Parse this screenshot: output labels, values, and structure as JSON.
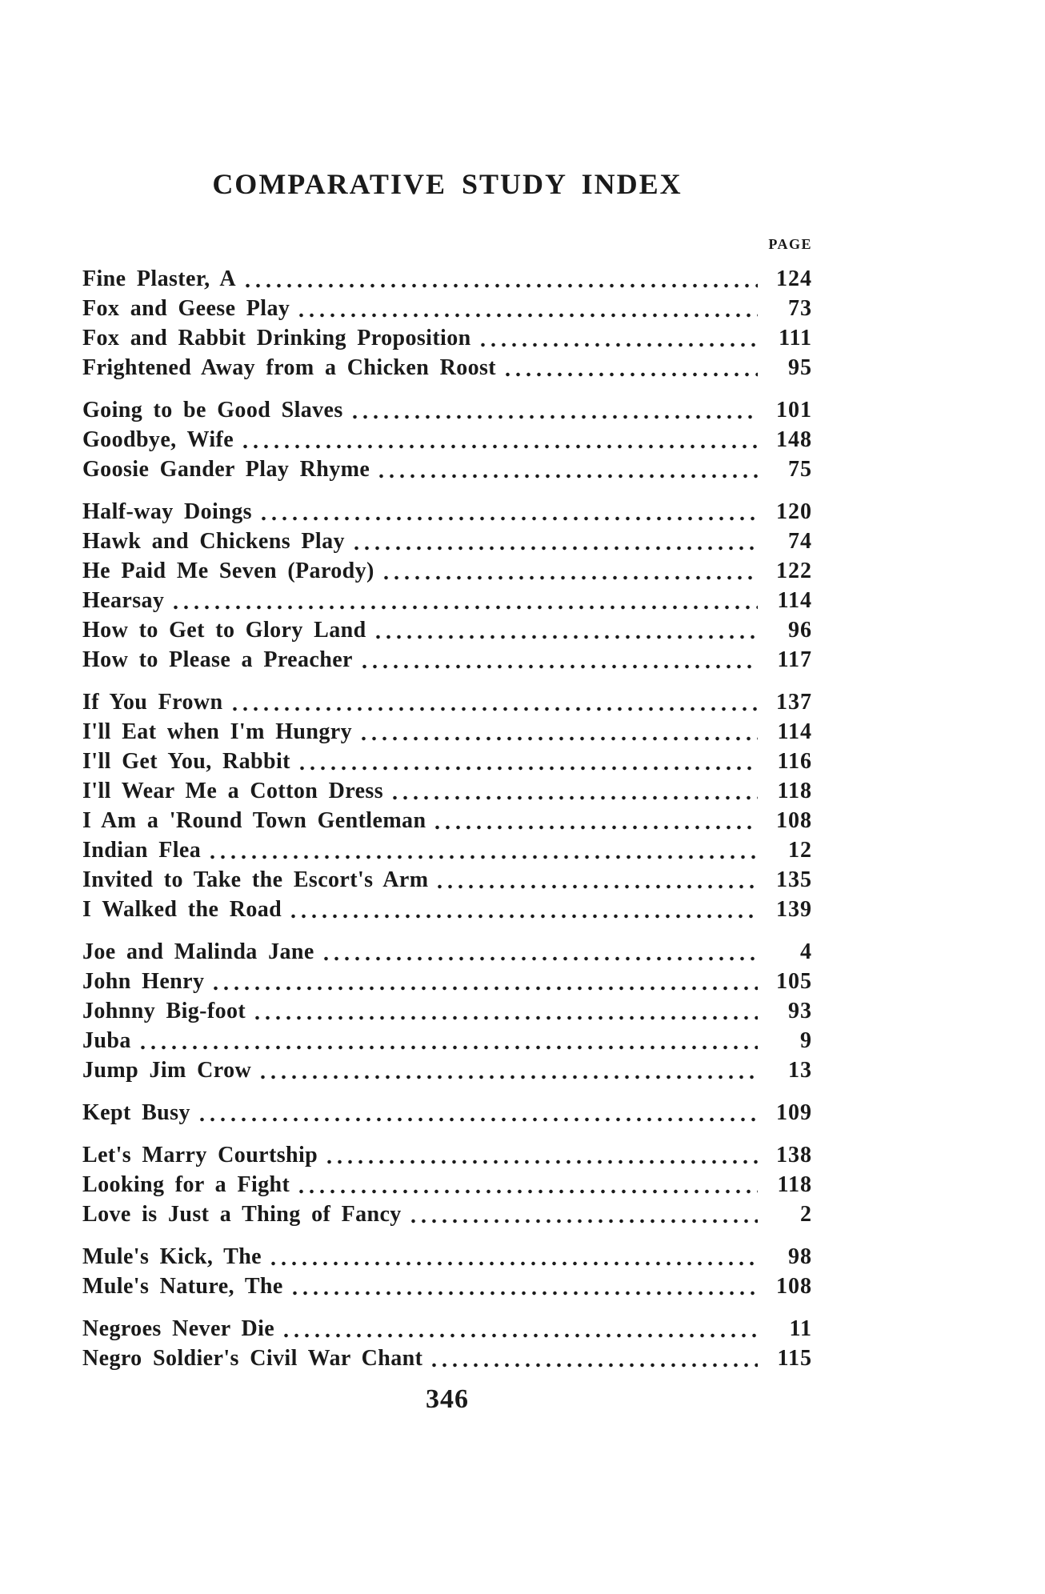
{
  "page": {
    "title": "COMPARATIVE STUDY INDEX",
    "page_column_label": "PAGE",
    "folio": "346"
  },
  "colors": {
    "paper": "#ffffff",
    "ink": "#1a1a1a"
  },
  "index_groups": [
    {
      "entries": [
        {
          "title": "Fine Plaster, A",
          "page": "124"
        },
        {
          "title": "Fox and Geese Play",
          "page": "73"
        },
        {
          "title": "Fox and Rabbit Drinking Proposition",
          "page": "111"
        },
        {
          "title": "Frightened Away from a Chicken Roost",
          "page": "95"
        }
      ]
    },
    {
      "entries": [
        {
          "title": "Going to be Good Slaves",
          "page": "101"
        },
        {
          "title": "Goodbye, Wife",
          "page": "148"
        },
        {
          "title": "Goosie Gander Play Rhyme",
          "page": "75"
        }
      ]
    },
    {
      "entries": [
        {
          "title": "Half-way Doings",
          "page": "120"
        },
        {
          "title": "Hawk and Chickens Play",
          "page": "74"
        },
        {
          "title": "He Paid Me Seven (Parody)",
          "page": "122"
        },
        {
          "title": "Hearsay",
          "page": "114"
        },
        {
          "title": "How to Get to Glory Land",
          "page": "96"
        },
        {
          "title": "How to Please a Preacher",
          "page": "117"
        }
      ]
    },
    {
      "entries": [
        {
          "title": "If You Frown",
          "page": "137"
        },
        {
          "title": "I'll Eat when I'm Hungry",
          "page": "114"
        },
        {
          "title": "I'll Get You, Rabbit",
          "page": "116"
        },
        {
          "title": "I'll Wear Me a Cotton Dress",
          "page": "118"
        },
        {
          "title": "I Am a 'Round Town Gentleman",
          "page": "108"
        },
        {
          "title": "Indian Flea",
          "page": "12"
        },
        {
          "title": "Invited to Take the Escort's Arm",
          "page": "135"
        },
        {
          "title": "I Walked the Road",
          "page": "139"
        }
      ]
    },
    {
      "entries": [
        {
          "title": "Joe and Malinda Jane",
          "page": "4"
        },
        {
          "title": "John Henry",
          "page": "105"
        },
        {
          "title": "Johnny Big-foot",
          "page": "93"
        },
        {
          "title": "Juba",
          "page": "9"
        },
        {
          "title": "Jump Jim Crow",
          "page": "13"
        }
      ]
    },
    {
      "entries": [
        {
          "title": "Kept Busy",
          "page": "109"
        }
      ]
    },
    {
      "entries": [
        {
          "title": "Let's Marry Courtship",
          "page": "138"
        },
        {
          "title": "Looking for a Fight",
          "page": "118"
        },
        {
          "title": "Love is Just a Thing of Fancy",
          "page": "2"
        }
      ]
    },
    {
      "entries": [
        {
          "title": "Mule's Kick, The",
          "page": "98"
        },
        {
          "title": "Mule's Nature, The",
          "page": "108"
        }
      ]
    },
    {
      "entries": [
        {
          "title": "Negroes Never Die",
          "page": "11"
        },
        {
          "title": "Negro Soldier's Civil War Chant",
          "page": "115"
        }
      ]
    }
  ]
}
